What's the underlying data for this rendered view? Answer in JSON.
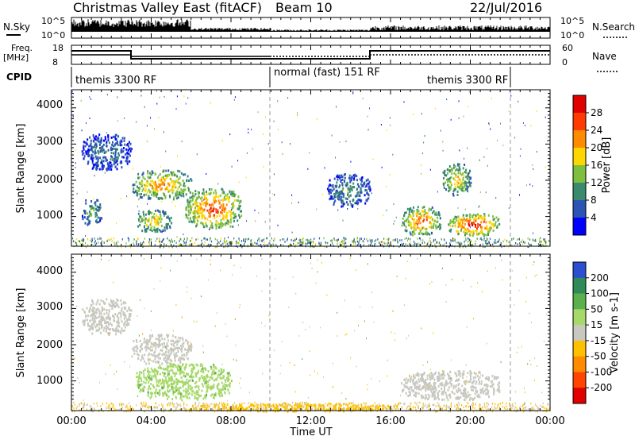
{
  "header": {
    "title": "Christmas Valley East (fitACF)",
    "beam": "Beam 10",
    "date": "22/Jul/2016"
  },
  "panels": {
    "nsky_label": "N.Sky",
    "nsky_ticks": [
      "10^5",
      "10^0"
    ],
    "nsearch_label": "N.Search",
    "nsearch_ticks": [
      "10^5",
      "10^0"
    ],
    "freq_label": "Freq.",
    "freq_unit": "[MHz]",
    "freq_ticks": [
      "18",
      "8"
    ],
    "nave_label": "Nave",
    "nave_ticks": [
      "60",
      "0"
    ],
    "cpid_label": "CPID",
    "cpid_segments": [
      {
        "label": "themis 3300 RF",
        "start_h": 0.0,
        "end_h": 10.0
      },
      {
        "label": "normal (fast) 151 RF",
        "start_h": 10.0,
        "end_h": 22.0
      },
      {
        "label": "themis 3300 RF",
        "start_h": 22.0,
        "end_h": 24.0
      }
    ]
  },
  "colorbars": {
    "power": {
      "label": "Power [dB]",
      "ticks": [
        "28",
        "24",
        "20",
        "16",
        "12",
        "8",
        "4"
      ],
      "colors": [
        "#0000ff",
        "#2a55b4",
        "#3a8a6e",
        "#7fbf3f",
        "#ffd700",
        "#ff8c00",
        "#ff3a00",
        "#e00000"
      ]
    },
    "velocity": {
      "label": "Velocity [m s-1]",
      "ticks": [
        "200",
        "100",
        "50",
        "15",
        "-15",
        "-50",
        "-100",
        "-200"
      ],
      "colors": [
        "#2a4fd0",
        "#2e8b57",
        "#5ab04a",
        "#a6d96a",
        "#c8c8c0",
        "#ffc000",
        "#ff8c00",
        "#ff4500",
        "#e00000"
      ]
    }
  },
  "chart_data": [
    {
      "type": "heatmap",
      "name": "power",
      "ylabel": "Slant Range [km]",
      "y_ticks": [
        "4000",
        "3000",
        "2000",
        "1000"
      ],
      "ylim": [
        180,
        4500
      ],
      "xlim_hours": [
        0,
        24
      ],
      "unit": "dB",
      "echo_regions": [
        {
          "t0": 0.5,
          "t1": 3.0,
          "r0": 2300,
          "r1": 3300,
          "power": 8
        },
        {
          "t0": 0.5,
          "t1": 1.5,
          "r0": 800,
          "r1": 1500,
          "power": 12
        },
        {
          "t0": 3.0,
          "t1": 6.0,
          "r0": 1500,
          "r1": 2300,
          "power": 20
        },
        {
          "t0": 3.2,
          "t1": 5.0,
          "r0": 600,
          "r1": 1200,
          "power": 18
        },
        {
          "t0": 5.7,
          "t1": 8.5,
          "r0": 700,
          "r1": 1800,
          "power": 24
        },
        {
          "t0": 12.8,
          "t1": 15.0,
          "r0": 1300,
          "r1": 2200,
          "power": 10
        },
        {
          "t0": 16.5,
          "t1": 18.5,
          "r0": 500,
          "r1": 1300,
          "power": 22
        },
        {
          "t0": 18.8,
          "t1": 21.5,
          "r0": 500,
          "r1": 1100,
          "power": 26
        },
        {
          "t0": 18.6,
          "t1": 20.0,
          "r0": 1600,
          "r1": 2500,
          "power": 18
        }
      ]
    },
    {
      "type": "heatmap",
      "name": "velocity",
      "ylabel": "Slant Range [km]",
      "y_ticks": [
        "4000",
        "3000",
        "2000",
        "1000"
      ],
      "ylim": [
        180,
        4500
      ],
      "xlim_hours": [
        0,
        24
      ],
      "unit": "m s-1",
      "echo_regions": [
        {
          "t0": 0.5,
          "t1": 3.0,
          "r0": 2300,
          "r1": 3300,
          "velocity": 0
        },
        {
          "t0": 3.0,
          "t1": 6.0,
          "r0": 1500,
          "r1": 2300,
          "velocity": 0
        },
        {
          "t0": 3.2,
          "t1": 8.0,
          "r0": 500,
          "r1": 1500,
          "velocity": 40
        },
        {
          "t0": 16.5,
          "t1": 21.5,
          "r0": 500,
          "r1": 1300,
          "velocity": 0
        },
        {
          "t0": 6.0,
          "t1": 16.0,
          "r0": 180,
          "r1": 400,
          "velocity": -30
        }
      ]
    }
  ],
  "time_axis": {
    "label": "Time UT",
    "ticks": [
      "00:00",
      "04:00",
      "08:00",
      "12:00",
      "16:00",
      "20:00",
      "00:00"
    ]
  }
}
